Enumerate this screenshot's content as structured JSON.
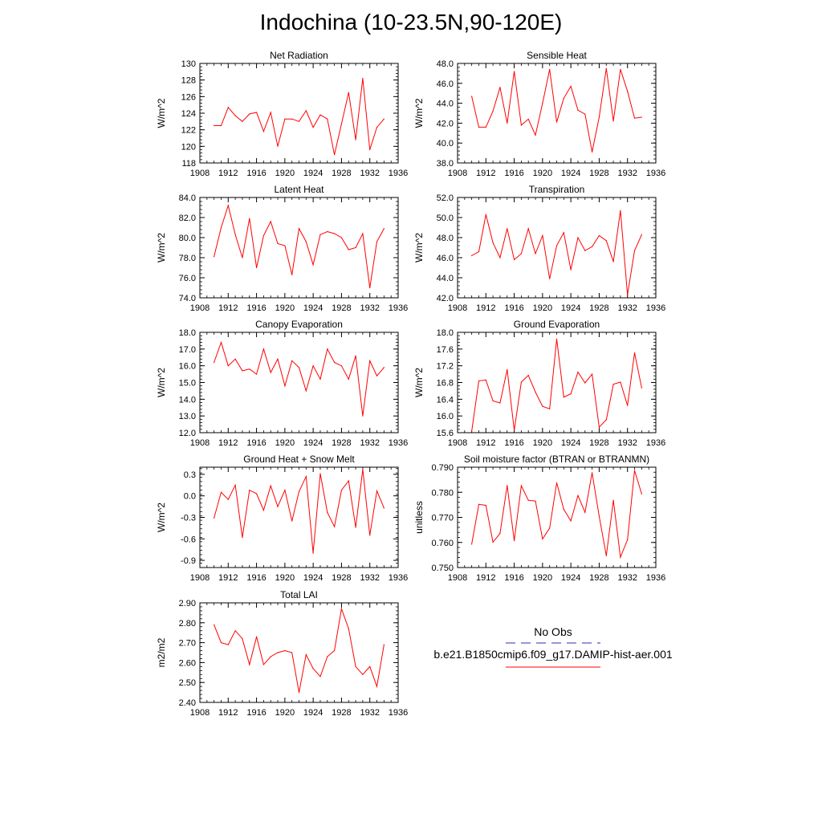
{
  "title": "Indochina (10-23.5N,90-120E)",
  "legend": {
    "obs_label": "No Obs",
    "obs_color": "#2b2bb8",
    "model_label": "b.e21.B1850cmip6.f09_g17.DAMIP-hist-aer.001",
    "model_color": "#ff0000"
  },
  "chart_data": [
    {
      "type": "line",
      "title": "Net Radiation",
      "ylabel": "W/m^2",
      "xlim": [
        1908,
        1936
      ],
      "ylim": [
        118,
        130
      ],
      "xticks": [
        "1908",
        "1912",
        "1916",
        "1920",
        "1924",
        "1928",
        "1932",
        "1936"
      ],
      "yticks": [
        "118",
        "120",
        "122",
        "124",
        "126",
        "128",
        "130"
      ],
      "x": [
        1910,
        1911,
        1912,
        1913,
        1914,
        1915,
        1916,
        1917,
        1918,
        1919,
        1920,
        1921,
        1922,
        1923,
        1924,
        1925,
        1926,
        1927,
        1928,
        1929,
        1930,
        1931,
        1932,
        1933,
        1934
      ],
      "series": [
        {
          "values": [
            122.5,
            122.5,
            124.7,
            123.7,
            123.0,
            123.9,
            124.1,
            121.8,
            124.1,
            120.0,
            123.3,
            123.3,
            123.0,
            124.3,
            122.3,
            123.8,
            123.3,
            119.0,
            122.7,
            126.5,
            120.8,
            128.2,
            119.6,
            122.3,
            123.3
          ]
        }
      ]
    },
    {
      "type": "line",
      "title": "Sensible Heat",
      "ylabel": "W/m^2",
      "xlim": [
        1908,
        1936
      ],
      "ylim": [
        38,
        48
      ],
      "xticks": [
        "1908",
        "1912",
        "1916",
        "1920",
        "1924",
        "1928",
        "1932",
        "1936"
      ],
      "yticks": [
        "38.0",
        "40.0",
        "42.0",
        "44.0",
        "46.0",
        "48.0"
      ],
      "x": [
        1910,
        1911,
        1912,
        1913,
        1914,
        1915,
        1916,
        1917,
        1918,
        1919,
        1920,
        1921,
        1922,
        1923,
        1924,
        1925,
        1926,
        1927,
        1928,
        1929,
        1930,
        1931,
        1932,
        1933,
        1934
      ],
      "series": [
        {
          "values": [
            44.7,
            41.6,
            41.6,
            43.2,
            45.6,
            42.0,
            47.2,
            41.8,
            42.4,
            40.8,
            44.0,
            47.4,
            42.1,
            44.5,
            45.7,
            43.3,
            42.9,
            39.1,
            42.6,
            47.5,
            42.2,
            47.4,
            45.2,
            42.5,
            42.6
          ]
        }
      ]
    },
    {
      "type": "line",
      "title": "Latent Heat",
      "ylabel": "W/m^2",
      "xlim": [
        1908,
        1936
      ],
      "ylim": [
        74,
        84
      ],
      "xticks": [
        "1908",
        "1912",
        "1916",
        "1920",
        "1924",
        "1928",
        "1932",
        "1936"
      ],
      "yticks": [
        "74.0",
        "76.0",
        "78.0",
        "80.0",
        "82.0",
        "84.0"
      ],
      "x": [
        1910,
        1911,
        1912,
        1913,
        1914,
        1915,
        1916,
        1917,
        1918,
        1919,
        1920,
        1921,
        1922,
        1923,
        1924,
        1925,
        1926,
        1927,
        1928,
        1929,
        1930,
        1931,
        1932,
        1933,
        1934
      ],
      "series": [
        {
          "values": [
            78.1,
            81.0,
            83.2,
            80.3,
            78.0,
            81.9,
            77.0,
            80.2,
            81.6,
            79.4,
            79.2,
            76.3,
            80.9,
            79.6,
            77.3,
            80.3,
            80.6,
            80.4,
            80.0,
            78.8,
            79.0,
            80.4,
            75.0,
            79.6,
            80.9
          ]
        }
      ]
    },
    {
      "type": "line",
      "title": "Transpiration",
      "ylabel": "W/m^2",
      "xlim": [
        1908,
        1936
      ],
      "ylim": [
        42,
        52
      ],
      "xticks": [
        "1908",
        "1912",
        "1916",
        "1920",
        "1924",
        "1928",
        "1932",
        "1936"
      ],
      "yticks": [
        "42.0",
        "44.0",
        "46.0",
        "48.0",
        "50.0",
        "52.0"
      ],
      "x": [
        1910,
        1911,
        1912,
        1913,
        1914,
        1915,
        1916,
        1917,
        1918,
        1919,
        1920,
        1921,
        1922,
        1923,
        1924,
        1925,
        1926,
        1927,
        1928,
        1929,
        1930,
        1931,
        1932,
        1933,
        1934
      ],
      "series": [
        {
          "values": [
            46.2,
            46.6,
            50.3,
            47.5,
            46.0,
            48.9,
            45.8,
            46.4,
            48.9,
            46.4,
            48.2,
            43.9,
            47.2,
            48.5,
            44.8,
            48.0,
            46.7,
            47.1,
            48.2,
            47.7,
            45.6,
            50.7,
            42.3,
            46.7,
            48.3
          ]
        }
      ]
    },
    {
      "type": "line",
      "title": "Canopy Evaporation",
      "ylabel": "W/m^2",
      "xlim": [
        1908,
        1936
      ],
      "ylim": [
        12,
        18
      ],
      "xticks": [
        "1908",
        "1912",
        "1916",
        "1920",
        "1924",
        "1928",
        "1932",
        "1936"
      ],
      "yticks": [
        "12.0",
        "13.0",
        "14.0",
        "15.0",
        "16.0",
        "17.0",
        "18.0"
      ],
      "x": [
        1910,
        1911,
        1912,
        1913,
        1914,
        1915,
        1916,
        1917,
        1918,
        1919,
        1920,
        1921,
        1922,
        1923,
        1924,
        1925,
        1926,
        1927,
        1928,
        1929,
        1930,
        1931,
        1932,
        1933,
        1934
      ],
      "series": [
        {
          "values": [
            16.2,
            17.4,
            16.0,
            16.4,
            15.7,
            15.8,
            15.5,
            17.0,
            15.6,
            16.4,
            14.8,
            16.3,
            15.9,
            14.5,
            16.0,
            15.2,
            17.0,
            16.2,
            16.0,
            15.2,
            16.6,
            13.0,
            16.3,
            15.4,
            15.9
          ]
        }
      ]
    },
    {
      "type": "line",
      "title": "Ground Evaporation",
      "ylabel": "W/m^2",
      "xlim": [
        1908,
        1936
      ],
      "ylim": [
        15.6,
        18
      ],
      "xticks": [
        "1908",
        "1912",
        "1916",
        "1920",
        "1924",
        "1928",
        "1932",
        "1936"
      ],
      "yticks": [
        "15.6",
        "16.0",
        "16.4",
        "16.8",
        "17.2",
        "17.6",
        "18.0"
      ],
      "x": [
        1910,
        1911,
        1912,
        1913,
        1914,
        1915,
        1916,
        1917,
        1918,
        1919,
        1920,
        1921,
        1922,
        1923,
        1924,
        1925,
        1926,
        1927,
        1928,
        1929,
        1930,
        1931,
        1932,
        1933,
        1934
      ],
      "series": [
        {
          "values": [
            15.63,
            16.84,
            16.86,
            16.36,
            16.31,
            17.11,
            15.66,
            16.81,
            16.97,
            16.57,
            16.23,
            16.17,
            17.84,
            16.45,
            16.53,
            17.05,
            16.79,
            17.0,
            15.73,
            15.91,
            16.76,
            16.81,
            16.25,
            17.51,
            16.67
          ]
        }
      ]
    },
    {
      "type": "line",
      "title": "Ground Heat + Snow Melt",
      "ylabel": "W/m^2",
      "xlim": [
        1908,
        1936
      ],
      "ylim": [
        -1.0,
        0.4
      ],
      "xticks": [
        "1908",
        "1912",
        "1916",
        "1920",
        "1924",
        "1928",
        "1932",
        "1936"
      ],
      "yticks": [
        "-0.9",
        "-0.6",
        "-0.3",
        "0.0",
        "0.3"
      ],
      "x": [
        1910,
        1911,
        1912,
        1913,
        1914,
        1915,
        1916,
        1917,
        1918,
        1919,
        1920,
        1921,
        1922,
        1923,
        1924,
        1925,
        1926,
        1927,
        1928,
        1929,
        1930,
        1931,
        1932,
        1933,
        1934
      ],
      "series": [
        {
          "values": [
            -0.31,
            0.05,
            -0.05,
            0.15,
            -0.58,
            0.08,
            0.03,
            -0.2,
            0.14,
            -0.15,
            0.08,
            -0.35,
            0.06,
            0.27,
            -0.8,
            0.31,
            -0.23,
            -0.43,
            0.08,
            0.21,
            -0.44,
            0.37,
            -0.55,
            0.07,
            -0.17
          ]
        }
      ]
    },
    {
      "type": "line",
      "title": "Soil moisture factor (BTRAN or BTRANMN)",
      "ylabel": "unitless",
      "xlim": [
        1908,
        1936
      ],
      "ylim": [
        0.75,
        0.79
      ],
      "xticks": [
        "1908",
        "1912",
        "1916",
        "1920",
        "1924",
        "1928",
        "1932",
        "1936"
      ],
      "yticks": [
        "0.750",
        "0.760",
        "0.770",
        "0.780",
        "0.790"
      ],
      "x": [
        1910,
        1911,
        1912,
        1913,
        1914,
        1915,
        1916,
        1917,
        1918,
        1919,
        1920,
        1921,
        1922,
        1923,
        1924,
        1925,
        1926,
        1927,
        1928,
        1929,
        1930,
        1931,
        1932,
        1933,
        1934
      ],
      "series": [
        {
          "values": [
            0.7593,
            0.7752,
            0.7748,
            0.7601,
            0.7636,
            0.7827,
            0.7607,
            0.7826,
            0.7768,
            0.7765,
            0.7614,
            0.7657,
            0.7838,
            0.7732,
            0.7686,
            0.7787,
            0.772,
            0.7878,
            0.7705,
            0.7547,
            0.7768,
            0.7541,
            0.7611,
            0.7887,
            0.7793
          ]
        }
      ]
    },
    {
      "type": "line",
      "title": "Total LAI",
      "ylabel": "m2/m2",
      "xlim": [
        1908,
        1936
      ],
      "ylim": [
        2.4,
        2.9
      ],
      "xticks": [
        "1908",
        "1912",
        "1916",
        "1920",
        "1924",
        "1928",
        "1932",
        "1936"
      ],
      "yticks": [
        "2.40",
        "2.50",
        "2.60",
        "2.70",
        "2.80",
        "2.90"
      ],
      "x": [
        1910,
        1911,
        1912,
        1913,
        1914,
        1915,
        1916,
        1917,
        1918,
        1919,
        1920,
        1921,
        1922,
        1923,
        1924,
        1925,
        1926,
        1927,
        1928,
        1929,
        1930,
        1931,
        1932,
        1933,
        1934
      ],
      "series": [
        {
          "values": [
            2.79,
            2.7,
            2.69,
            2.76,
            2.72,
            2.59,
            2.73,
            2.59,
            2.63,
            2.65,
            2.66,
            2.65,
            2.45,
            2.64,
            2.57,
            2.53,
            2.63,
            2.66,
            2.87,
            2.77,
            2.58,
            2.54,
            2.58,
            2.48,
            2.69
          ]
        }
      ]
    }
  ]
}
